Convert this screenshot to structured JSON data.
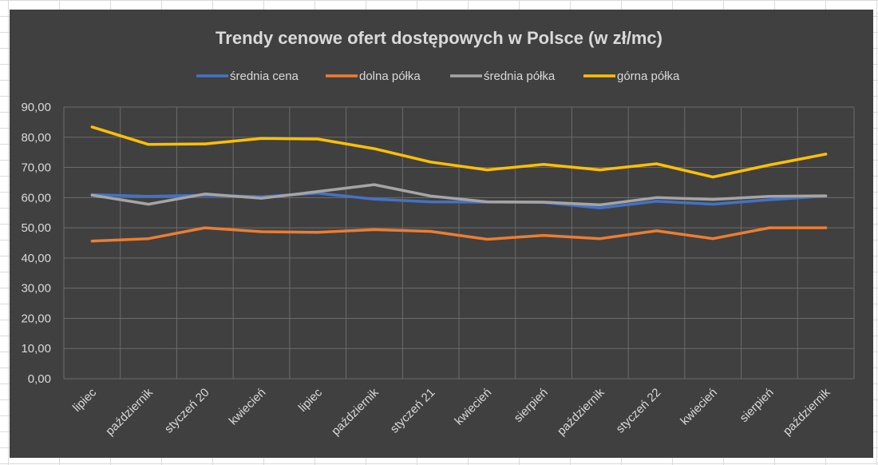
{
  "chart_data": {
    "type": "line",
    "title": "Trendy cenowe ofert dostępowych w Polsce (w zł/mc)",
    "xlabel": "",
    "ylabel": "",
    "ylim": [
      0,
      90
    ],
    "y_tick_labels": [
      "0,00",
      "10,00",
      "20,00",
      "30,00",
      "40,00",
      "50,00",
      "60,00",
      "70,00",
      "80,00",
      "90,00"
    ],
    "grid": true,
    "legend_position": "top",
    "categories": [
      "lipiec",
      "październik",
      "styczeń 20",
      "kwiecień",
      "lipiec",
      "październik",
      "styczeń 21",
      "kwiecień",
      "sierpień",
      "październik",
      "styczeń 22",
      "kwiecień",
      "sierpień",
      "październik"
    ],
    "series": [
      {
        "name": "średnia cena",
        "color": "#4472c4",
        "values": [
          61.0,
          60.4,
          60.8,
          60.3,
          61.5,
          59.5,
          58.6,
          58.5,
          58.4,
          56.6,
          58.8,
          57.8,
          59.3,
          60.5
        ]
      },
      {
        "name": "dolna półka",
        "color": "#ed7d31",
        "values": [
          45.6,
          46.4,
          50.0,
          48.7,
          48.5,
          49.4,
          48.8,
          46.2,
          47.5,
          46.4,
          49.0,
          46.4,
          50.0,
          50.0
        ]
      },
      {
        "name": "średnia półka",
        "color": "#a5a5a5",
        "values": [
          60.8,
          57.8,
          61.2,
          59.8,
          62.0,
          64.3,
          60.5,
          58.6,
          58.5,
          57.6,
          60.0,
          59.4,
          60.4,
          60.6
        ]
      },
      {
        "name": "górna półka",
        "color": "#ffc000",
        "values": [
          83.4,
          77.6,
          77.8,
          79.6,
          79.4,
          76.2,
          71.8,
          69.2,
          71.0,
          69.2,
          71.2,
          66.8,
          70.8,
          74.4
        ]
      }
    ]
  }
}
